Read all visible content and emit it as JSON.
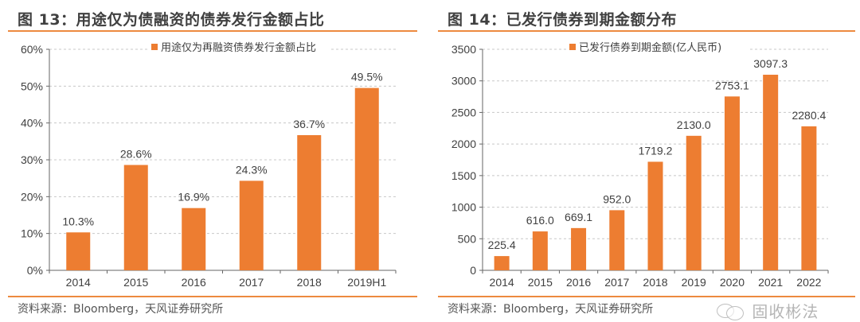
{
  "watermark": {
    "text": "固收彬法",
    "icon": "wechat-icon"
  },
  "panels": [
    {
      "title": "图 13：用途仅为债融资的债券发行金额占比",
      "source": "资料来源：Bloomberg，天风证券研究所"
    },
    {
      "title": "图 14：已发行债券到期金额分布",
      "source": "资料来源：Bloomberg，天风证券研究所"
    }
  ],
  "chart_data": [
    {
      "type": "bar",
      "title": "图 13：用途仅为债融资的债券发行金额占比",
      "legend": [
        "用途仅为再融资债券发行金额占比"
      ],
      "legend_position": "top-center",
      "categories": [
        "2014",
        "2015",
        "2016",
        "2017",
        "2018",
        "2019H1"
      ],
      "series": [
        {
          "name": "用途仅为再融资债券发行金额占比",
          "values": [
            10.3,
            28.6,
            16.9,
            24.3,
            36.7,
            49.5
          ],
          "color": "#ED7D31"
        }
      ],
      "data_labels": [
        "10.3%",
        "28.6%",
        "16.9%",
        "24.3%",
        "36.7%",
        "49.5%"
      ],
      "yticks": [
        0,
        10,
        20,
        30,
        40,
        50,
        60
      ],
      "ytick_labels": [
        "0%",
        "10%",
        "20%",
        "30%",
        "40%",
        "50%",
        "60%"
      ],
      "ylim": [
        0,
        60
      ],
      "xlabel": "",
      "ylabel": "",
      "grid": true
    },
    {
      "type": "bar",
      "title": "图 14：已发行债券到期金额分布",
      "legend": [
        "已发行债券到期金额(亿人民币)"
      ],
      "legend_position": "top-center",
      "categories": [
        "2014",
        "2015",
        "2016",
        "2017",
        "2018",
        "2019",
        "2020",
        "2021",
        "2022"
      ],
      "series": [
        {
          "name": "已发行债券到期金额(亿人民币)",
          "values": [
            225.4,
            616.0,
            669.1,
            952.0,
            1719.2,
            2130.0,
            2753.1,
            3097.3,
            2280.4
          ],
          "color": "#ED7D31"
        }
      ],
      "data_labels": [
        "225.4",
        "616.0",
        "669.1",
        "952.0",
        "1719.2",
        "2130.0",
        "2753.1",
        "3097.3",
        "2280.4"
      ],
      "yticks": [
        0,
        500,
        1000,
        1500,
        2000,
        2500,
        3000,
        3500
      ],
      "ytick_labels": [
        "0",
        "500",
        "1000",
        "1500",
        "2000",
        "2500",
        "3000",
        "3500"
      ],
      "ylim": [
        0,
        3500
      ],
      "xlabel": "",
      "ylabel": "",
      "grid": true
    }
  ]
}
